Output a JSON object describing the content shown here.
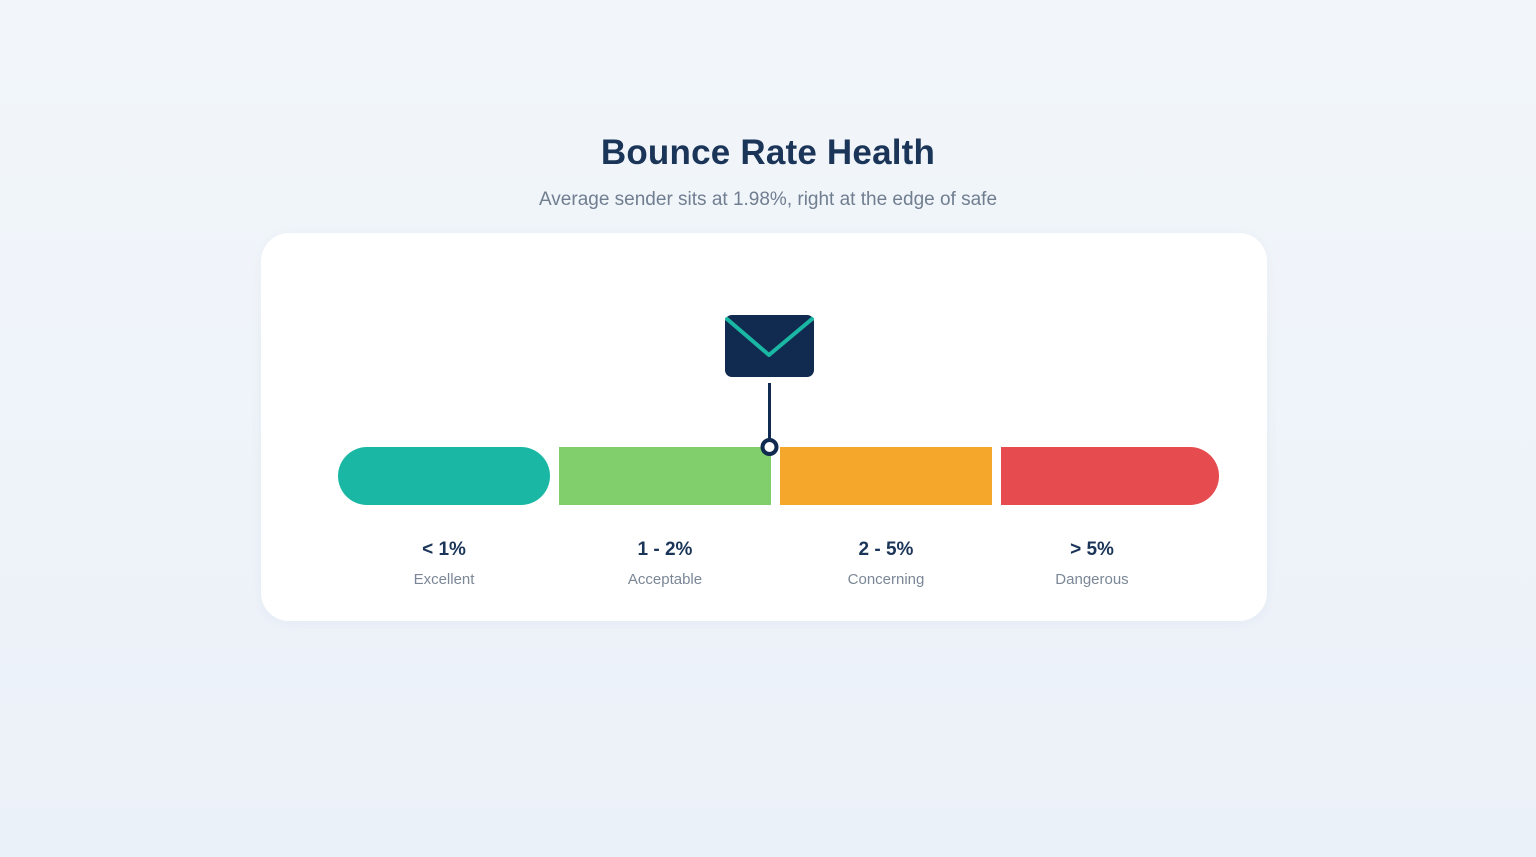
{
  "header": {
    "title": "Bounce Rate Health",
    "subtitle": "Average sender sits at 1.98%, right at the edge of safe"
  },
  "marker": {
    "value": 1.98,
    "icon": "envelope-icon"
  },
  "bands": [
    {
      "range": "< 1%",
      "label": "Excellent",
      "color": "#1ab8a4"
    },
    {
      "range": "1 - 2%",
      "label": "Acceptable",
      "color": "#80cf6c"
    },
    {
      "range": "2 - 5%",
      "label": "Concerning",
      "color": "#f4a72a"
    },
    {
      "range": "> 5%",
      "label": "Dangerous",
      "color": "#e54b4f"
    }
  ],
  "colors": {
    "navy": "#102b4f",
    "accent": "#1ab8a4"
  }
}
